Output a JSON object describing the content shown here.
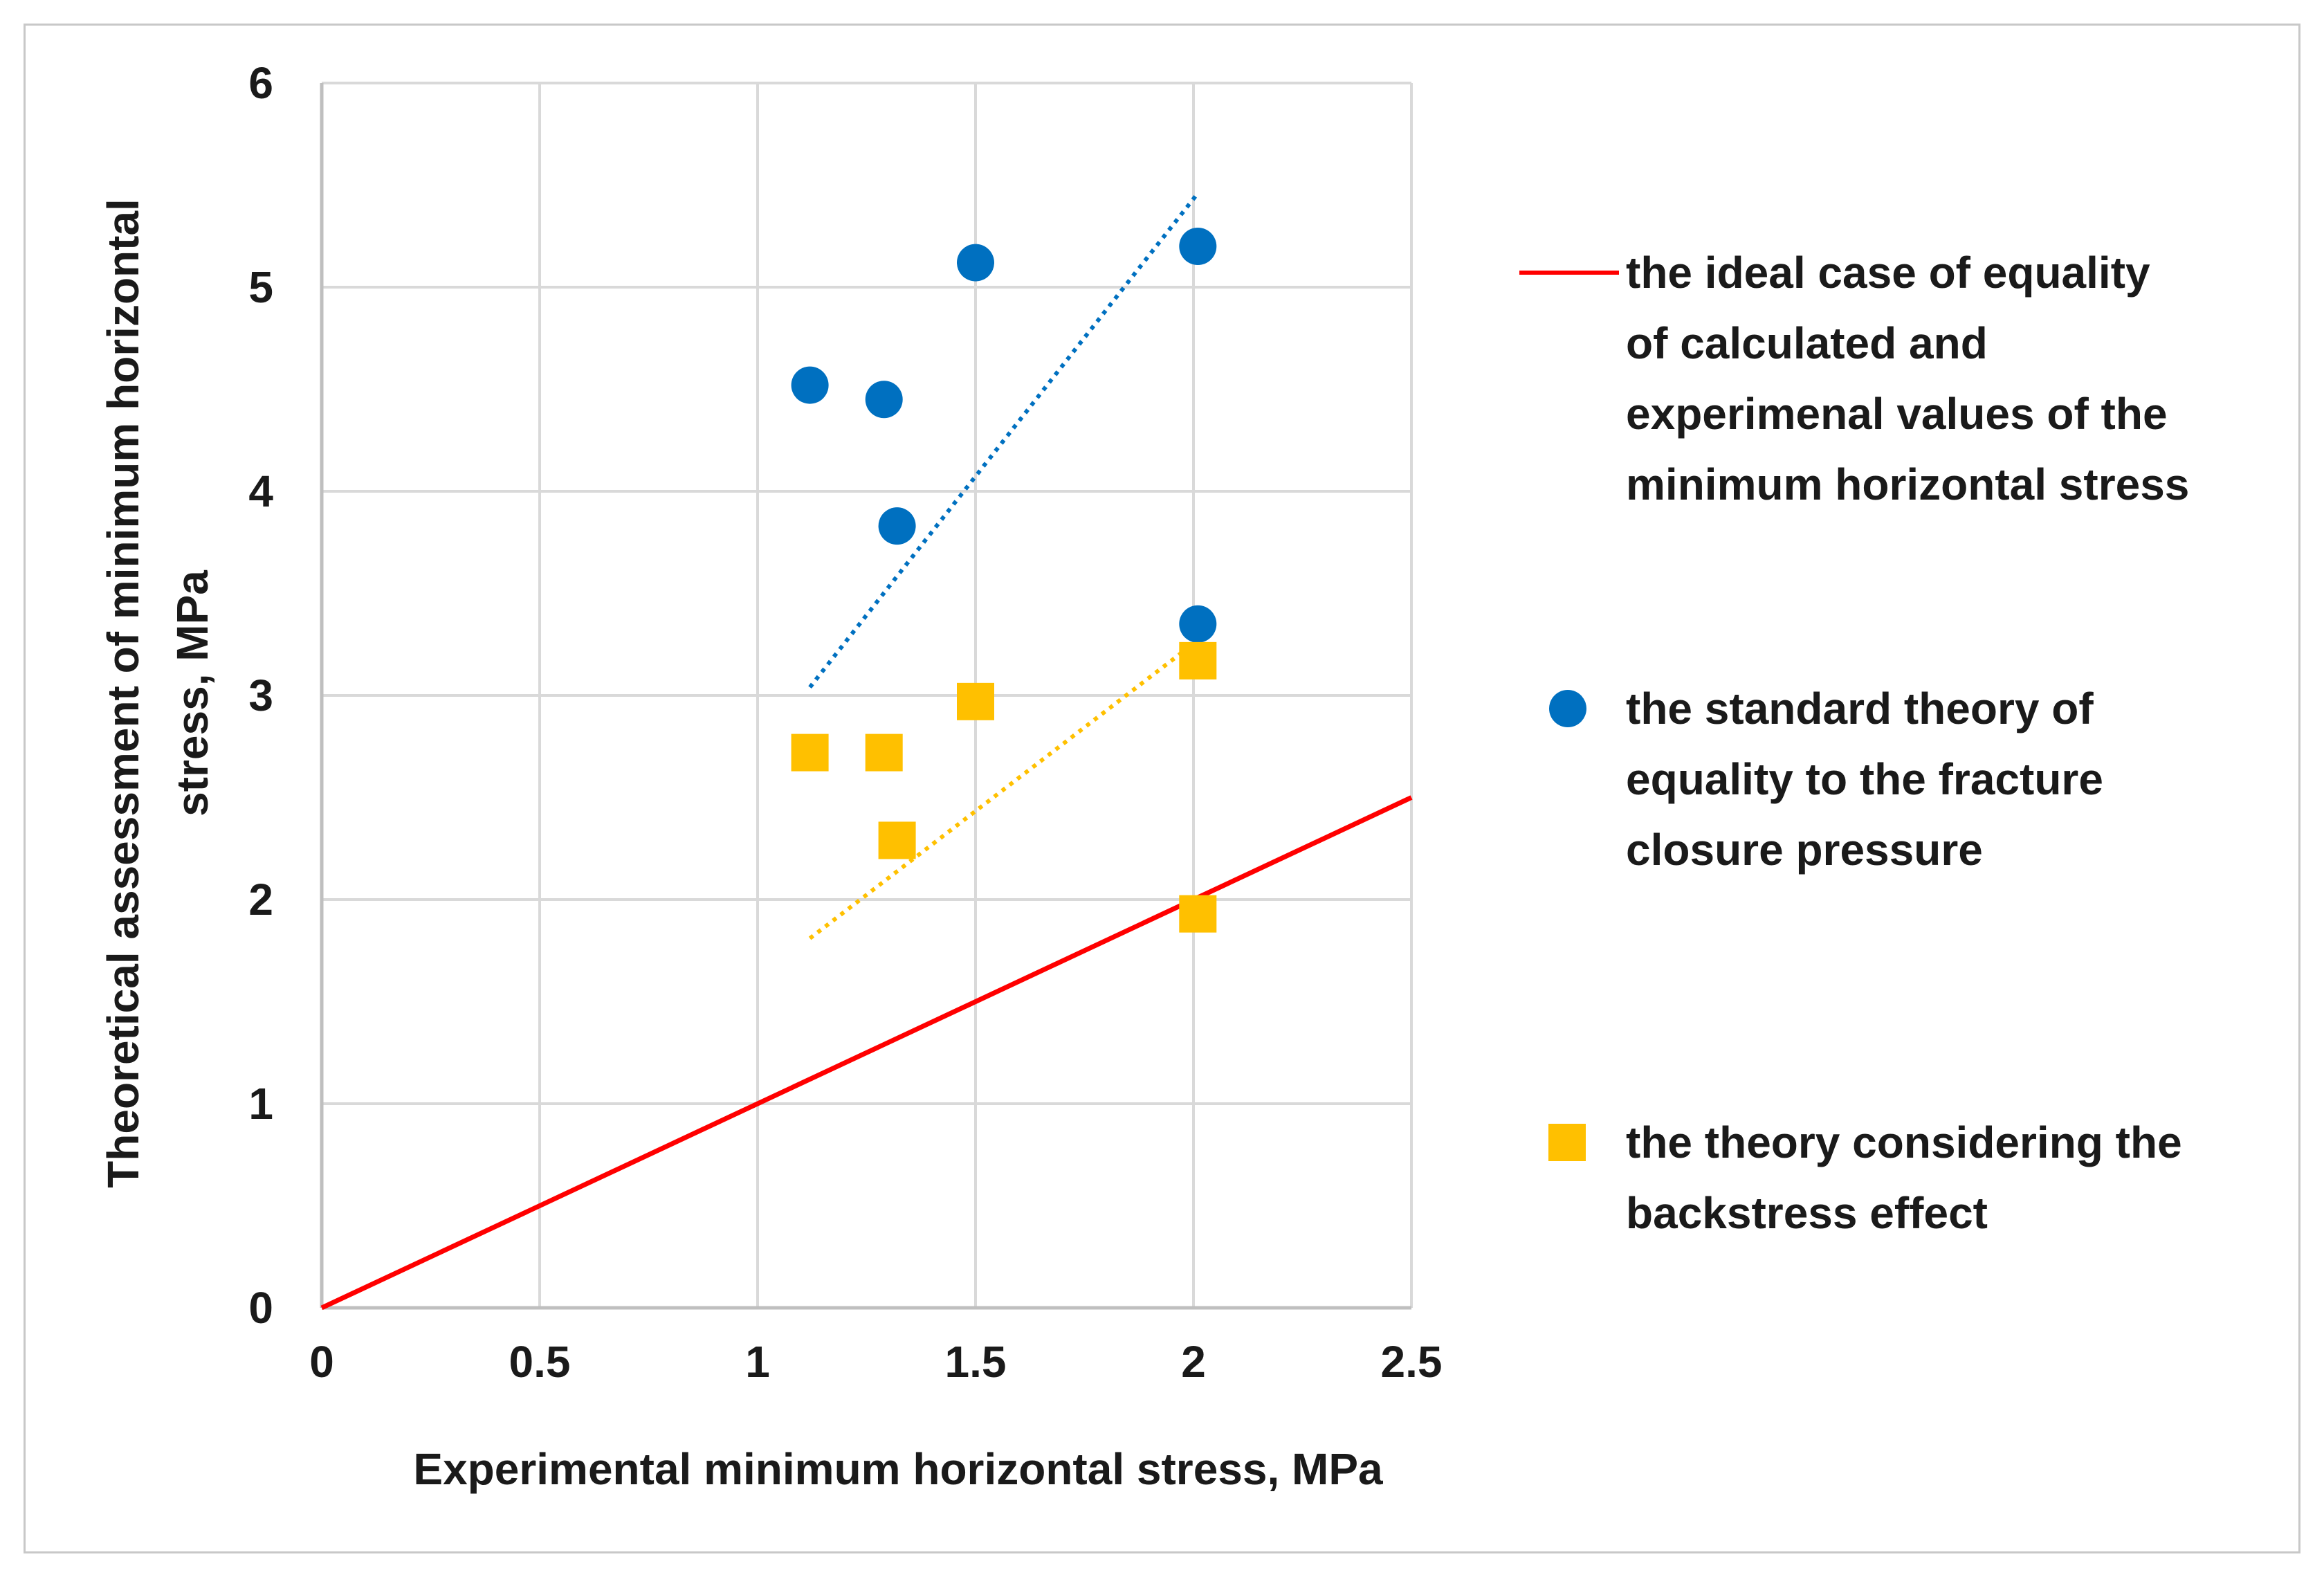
{
  "chart_data": {
    "type": "scatter",
    "title": "",
    "xlabel": "Experimental minimum  horizontal stress, MPa",
    "ylabel_lines": [
      "Theoretical assessment of minimum horizontal",
      "stress, MPa"
    ],
    "xlim": [
      0,
      2.5
    ],
    "ylim": [
      0,
      6
    ],
    "x_ticks": [
      0,
      0.5,
      1,
      1.5,
      2,
      2.5
    ],
    "x_tick_labels": [
      "0",
      "0.5",
      "1",
      "1.5",
      "2",
      "2.5"
    ],
    "y_ticks": [
      0,
      1,
      2,
      3,
      4,
      5,
      6
    ],
    "y_tick_labels": [
      "0",
      "1",
      "2",
      "3",
      "4",
      "5",
      "6"
    ],
    "grid": true,
    "legend_position": "right",
    "series": [
      {
        "name": "the ideal case of equality of calculated and experimenal values of the minimum horizontal stress",
        "legend_lines": [
          "the ideal case of equality",
          "of calculated and",
          "experimenal values of the",
          "minimum horizontal stress"
        ],
        "kind": "line",
        "color": "#ff0000",
        "x": [
          0,
          2.5
        ],
        "y": [
          0,
          2.5
        ]
      },
      {
        "name": "the standard theory of equality to the fracture closure pressure",
        "legend_lines": [
          "the standard theory of",
          "equality to the fracture",
          "closure pressure"
        ],
        "kind": "scatter",
        "marker": "circle",
        "color": "#0070c0",
        "x": [
          1.12,
          1.29,
          1.32,
          1.5,
          2.01,
          2.01
        ],
        "y": [
          4.52,
          4.45,
          3.83,
          5.12,
          5.2,
          3.35
        ],
        "trendline": {
          "x": [
            1.12,
            2.01
          ],
          "y": [
            3.04,
            5.46
          ]
        }
      },
      {
        "name": "the theory considering the backstress effect",
        "legend_lines": [
          "the theory considering the",
          "backstress effect"
        ],
        "kind": "scatter",
        "marker": "square",
        "color": "#ffc000",
        "x": [
          1.12,
          1.29,
          1.32,
          1.5,
          2.01,
          2.01
        ],
        "y": [
          2.72,
          2.72,
          2.29,
          2.97,
          3.17,
          1.93
        ],
        "trendline": {
          "x": [
            1.12,
            2.01
          ],
          "y": [
            1.81,
            3.27
          ]
        }
      }
    ]
  }
}
